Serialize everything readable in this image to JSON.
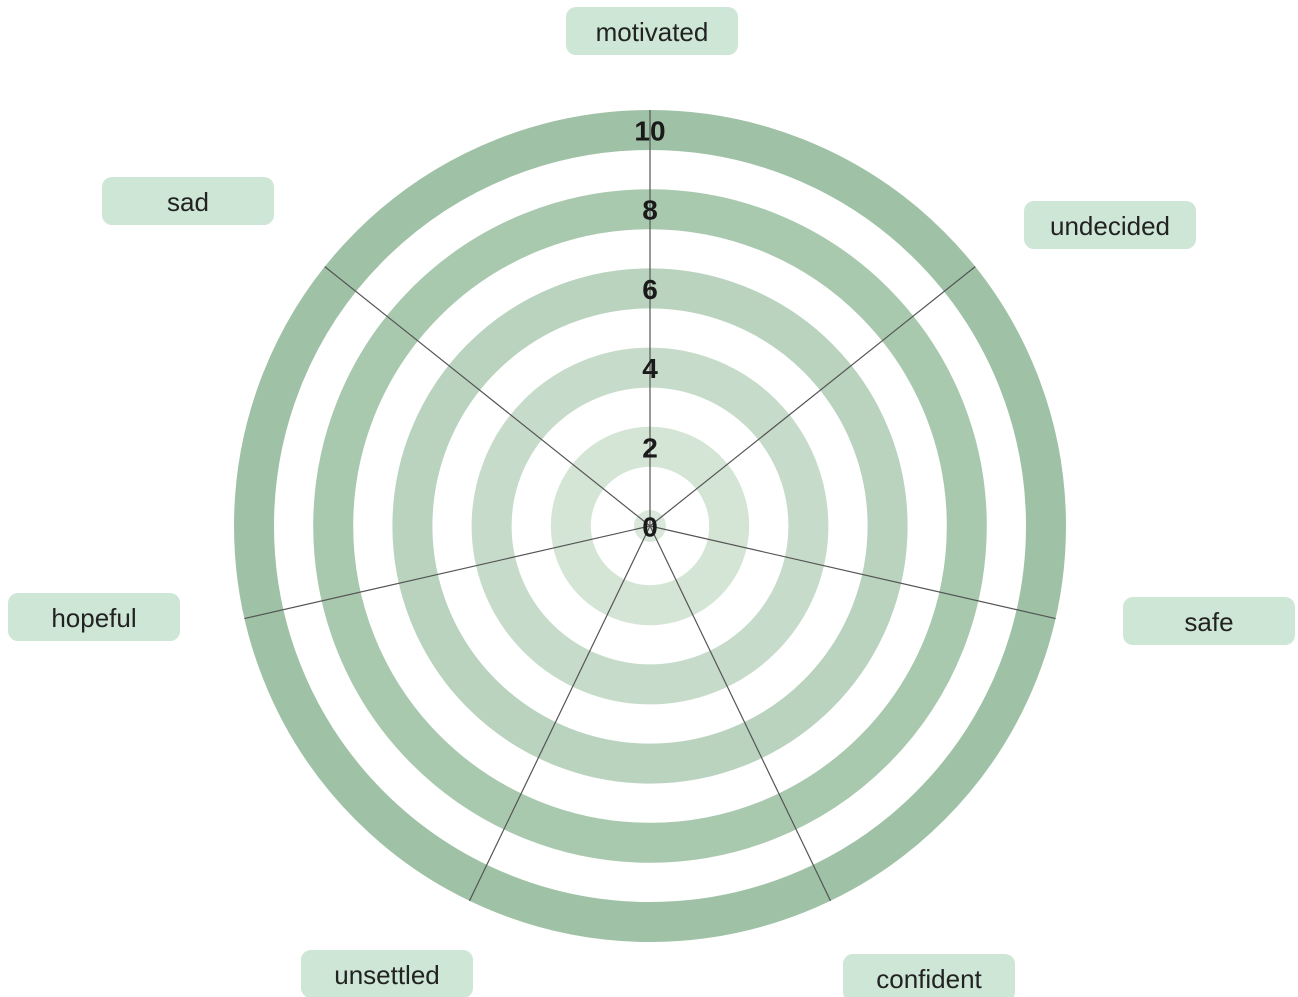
{
  "chart_data": {
    "type": "radar",
    "categories": [
      "motivated",
      "undecided",
      "safe",
      "confident",
      "unsettled",
      "hopeful",
      "sad"
    ],
    "rlim": [
      0,
      10
    ],
    "rticks": [
      0,
      2,
      4,
      6,
      8,
      10
    ],
    "ring_colors": [
      "#dae8dc",
      "#d4e5d6",
      "#c6dbc9",
      "#b9d3be",
      "#a9c9af",
      "#9fc2a6"
    ],
    "label_color": "#cde6d5"
  }
}
